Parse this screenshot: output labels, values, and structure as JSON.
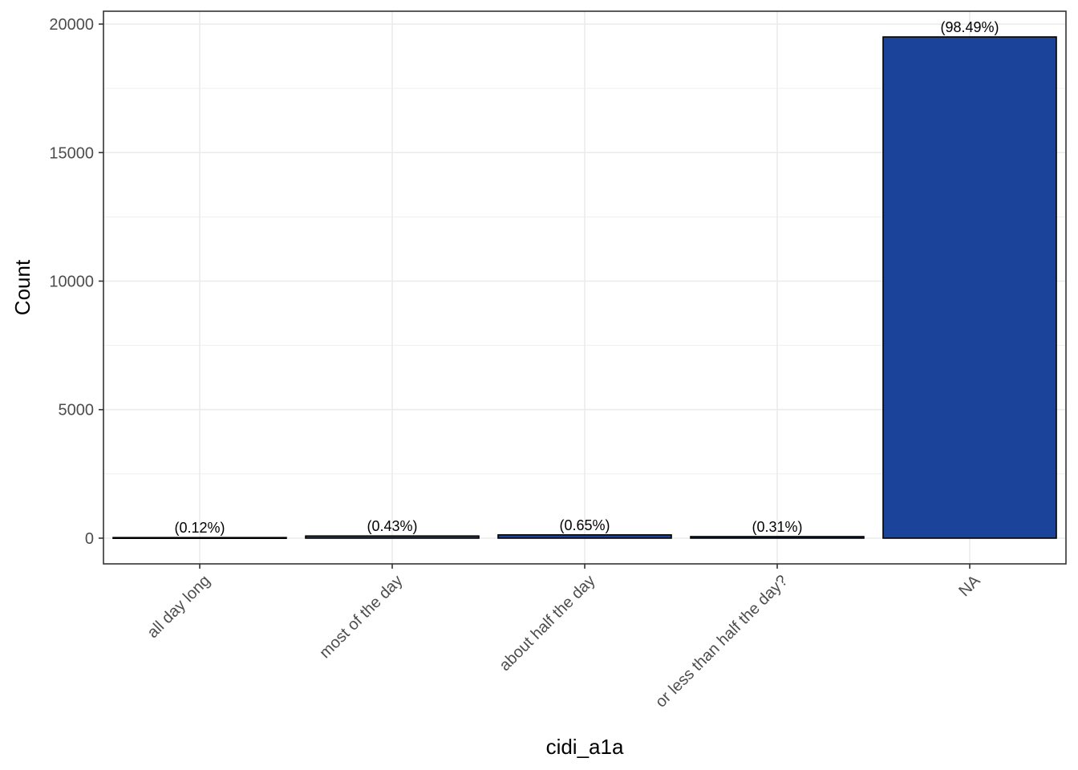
{
  "chart_data": {
    "type": "bar",
    "categories": [
      "all day long",
      "most of the day",
      "about half the day",
      "or less than half the day?",
      "NA"
    ],
    "values": [
      24,
      85,
      128,
      61,
      19500
    ],
    "bar_labels": [
      "(0.12%)",
      "(0.43%)",
      "(0.65%)",
      "(0.31%)",
      "(98.49%)"
    ],
    "yticks": [
      0,
      5000,
      10000,
      15000,
      20000
    ],
    "ylim": [
      -1000,
      20500
    ],
    "xlabel": "cidi_a1a",
    "ylabel": "Count",
    "grid": true,
    "colors": {
      "bar_fill": "#1a4399",
      "bar_stroke": "#000000",
      "grid": "#ebebeb",
      "panel_border": "#333333"
    }
  }
}
